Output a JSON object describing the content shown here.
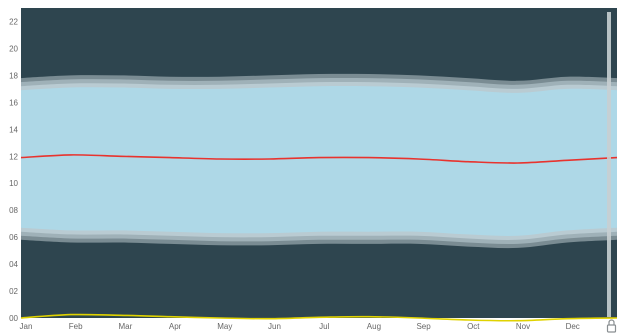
{
  "chart_data": {
    "type": "area",
    "title": "",
    "xlabel": "",
    "ylabel": "",
    "ylim": [
      0,
      23
    ],
    "x_ticks": [
      "Jan",
      "Feb",
      "Mar",
      "Apr",
      "May",
      "Jun",
      "Jul",
      "Aug",
      "Sep",
      "Oct",
      "Nov",
      "Dec"
    ],
    "y_ticks": [
      "00",
      "02",
      "04",
      "06",
      "08",
      "10",
      "12",
      "14",
      "16",
      "18",
      "20",
      "22"
    ],
    "y_tick_values": [
      0,
      2,
      4,
      6,
      8,
      10,
      12,
      14,
      16,
      18,
      20,
      22
    ],
    "x_points": [
      "Jan",
      "Feb",
      "Mar",
      "Apr",
      "May",
      "Jun",
      "Jul",
      "Aug",
      "Sep",
      "Oct",
      "Nov",
      "Dec",
      "Jan"
    ],
    "bands": [
      {
        "lower": [
          5.8,
          5.6,
          5.6,
          5.5,
          5.4,
          5.4,
          5.5,
          5.5,
          5.5,
          5.3,
          5.2,
          5.6,
          5.8
        ],
        "upper": [
          17.8,
          18.0,
          18.0,
          17.9,
          17.9,
          18.0,
          18.1,
          18.1,
          18.0,
          17.8,
          17.6,
          17.9,
          17.8
        ]
      },
      {
        "lower": [
          6.1,
          5.9,
          5.9,
          5.8,
          5.7,
          5.7,
          5.8,
          5.8,
          5.8,
          5.6,
          5.5,
          5.9,
          6.1
        ],
        "upper": [
          17.5,
          17.7,
          17.7,
          17.6,
          17.6,
          17.7,
          17.8,
          17.8,
          17.7,
          17.5,
          17.3,
          17.6,
          17.5
        ]
      },
      {
        "lower": [
          6.4,
          6.2,
          6.2,
          6.1,
          6.0,
          6.0,
          6.1,
          6.1,
          6.1,
          5.9,
          5.8,
          6.2,
          6.4
        ],
        "upper": [
          17.2,
          17.4,
          17.4,
          17.3,
          17.3,
          17.4,
          17.5,
          17.5,
          17.4,
          17.2,
          17.0,
          17.3,
          17.2
        ]
      },
      {
        "lower": [
          6.7,
          6.5,
          6.5,
          6.4,
          6.3,
          6.3,
          6.4,
          6.4,
          6.4,
          6.2,
          6.1,
          6.5,
          6.7
        ],
        "upper": [
          16.9,
          17.1,
          17.1,
          17.0,
          17.0,
          17.1,
          17.2,
          17.2,
          17.1,
          16.9,
          16.7,
          17.0,
          16.9
        ]
      }
    ],
    "series": [
      {
        "values": [
          11.9,
          12.1,
          12.0,
          11.9,
          11.8,
          11.8,
          11.9,
          11.9,
          11.8,
          11.6,
          11.5,
          11.7,
          11.9
        ],
        "color": "#e8332e"
      },
      {
        "values": [
          0.0,
          0.25,
          0.2,
          0.1,
          0.0,
          -0.05,
          0.05,
          0.1,
          0.0,
          -0.15,
          -0.2,
          -0.05,
          0.0
        ],
        "color": "#e0d200"
      }
    ],
    "grid": false,
    "legend": "none"
  },
  "colors": {
    "background": "#2e454f",
    "bands": [
      "#7a8c93",
      "#9fb1b8",
      "#b9cbd2",
      "#aed8e7"
    ]
  },
  "icons": {
    "corner": "lock-icon"
  }
}
